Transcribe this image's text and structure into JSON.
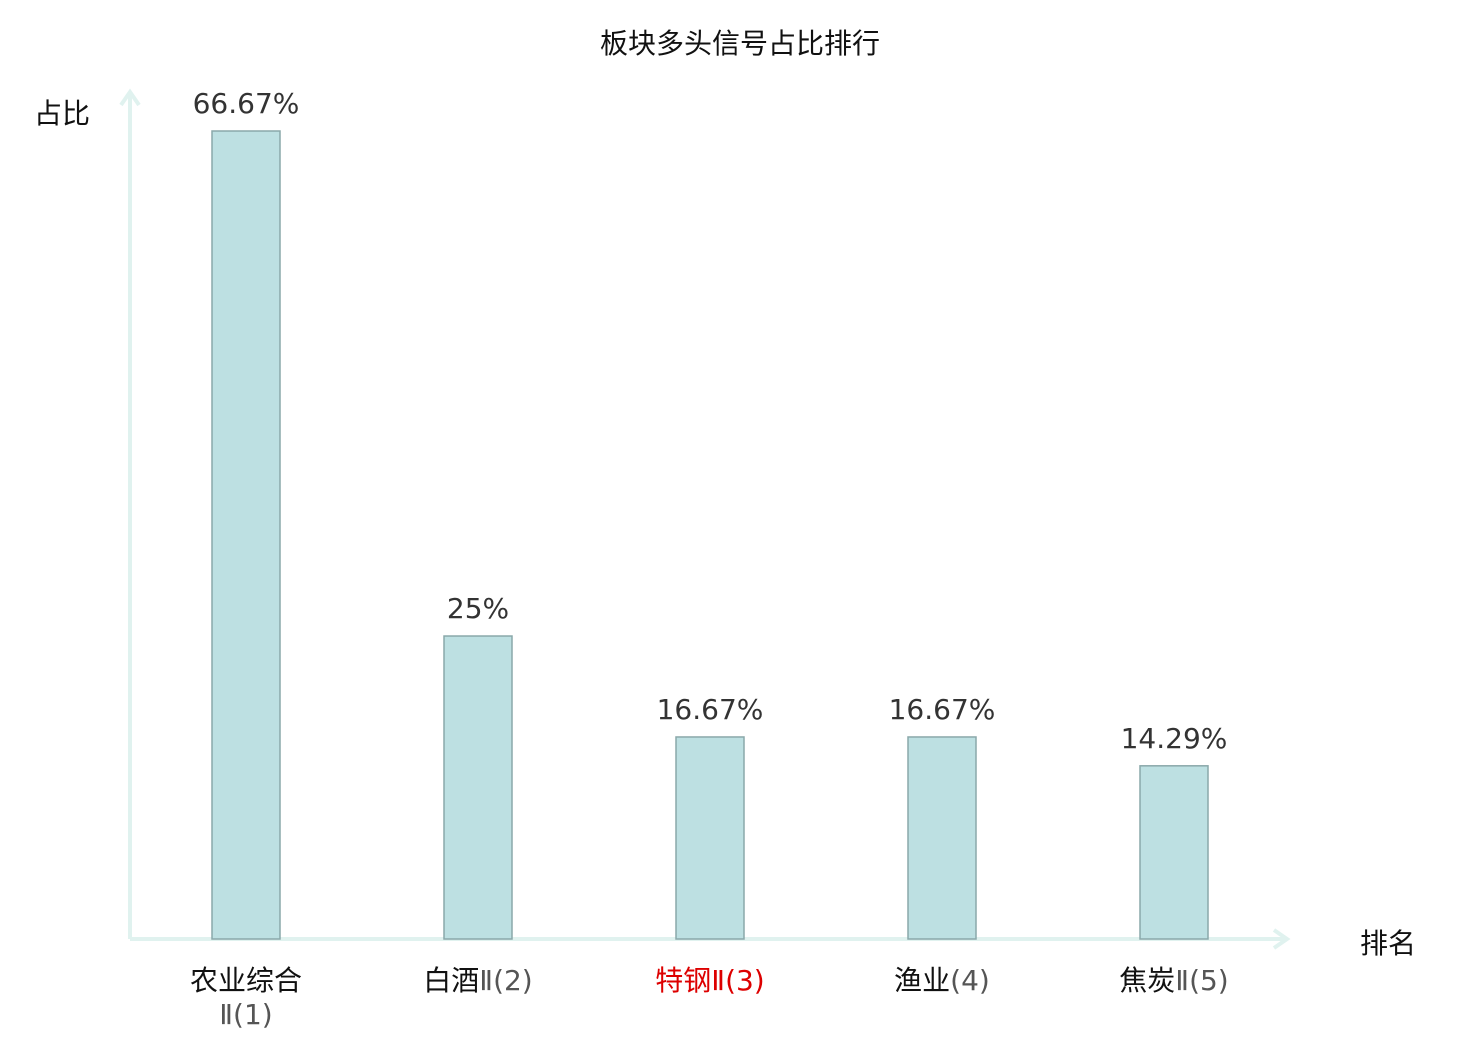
{
  "chart_data": {
    "type": "bar",
    "title": "板块多头信号占比排行",
    "ylabel": "占比",
    "xlabel": "排名",
    "ylim": [
      0,
      70
    ],
    "grid": false,
    "categories": [
      {
        "name": "农业综合",
        "suffix": "Ⅱ(1)",
        "wrap": true,
        "highlight": false
      },
      {
        "name": "白酒",
        "suffix": "Ⅱ(2)",
        "wrap": false,
        "highlight": false
      },
      {
        "name": "特钢",
        "suffix": "Ⅱ(3)",
        "wrap": false,
        "highlight": true
      },
      {
        "name": "渔业",
        "suffix": "(4)",
        "wrap": false,
        "highlight": false
      },
      {
        "name": "焦炭",
        "suffix": "Ⅱ(5)",
        "wrap": false,
        "highlight": false
      }
    ],
    "values": [
      66.67,
      25,
      16.67,
      16.67,
      14.29
    ],
    "value_labels": [
      "66.67%",
      "25%",
      "16.67%",
      "16.67%",
      "14.29%"
    ],
    "colors": {
      "bar_fill": "#bde0e2",
      "bar_stroke": "#8aa8aa",
      "axis": "#e0f2ef",
      "highlight_text": "#dd0000"
    }
  }
}
